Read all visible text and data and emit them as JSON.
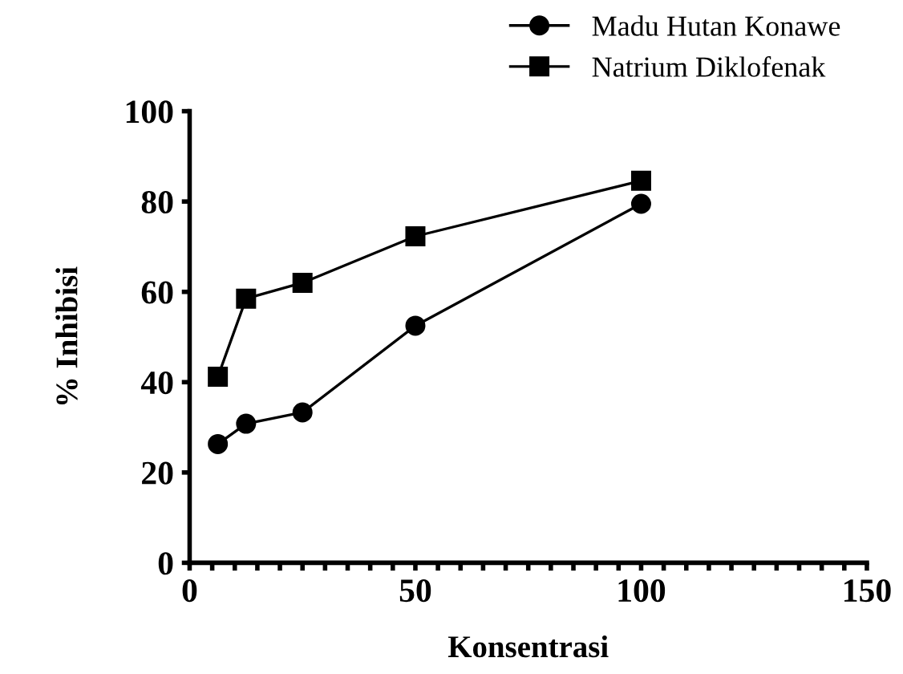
{
  "chart_data": {
    "type": "line",
    "xlabel": "Konsentrasi",
    "ylabel": "% Inhibisi",
    "x": [
      6.25,
      12.5,
      25,
      50,
      100
    ],
    "series": [
      {
        "name": "Madu Hutan Konawe",
        "color": "#000000",
        "marker": "circle",
        "values": [
          26.3,
          30.8,
          33.3,
          52.5,
          79.5
        ]
      },
      {
        "name": "Natrium Diklofenak",
        "color": "#000000",
        "marker": "square",
        "values": [
          41.2,
          58.5,
          62,
          72.3,
          84.6
        ]
      }
    ],
    "xlim": [
      0,
      150
    ],
    "ylim": [
      0,
      100
    ],
    "xticks": [
      0,
      {
        "value": 5,
        "label": null
      },
      {
        "value": 10,
        "label": null
      },
      {
        "value": 15,
        "label": null
      },
      {
        "value": 20,
        "label": null
      },
      {
        "value": 25,
        "label": null
      },
      {
        "value": 30,
        "label": null
      },
      {
        "value": 35,
        "label": null
      },
      {
        "value": 40,
        "label": null
      },
      {
        "value": 45,
        "label": null
      },
      50,
      {
        "value": 55,
        "label": null
      },
      {
        "value": 60,
        "label": null
      },
      {
        "value": 65,
        "label": null
      },
      {
        "value": 70,
        "label": null
      },
      {
        "value": 75,
        "label": null
      },
      {
        "value": 80,
        "label": null
      },
      {
        "value": 85,
        "label": null
      },
      {
        "value": 90,
        "label": null
      },
      {
        "value": 95,
        "label": null
      },
      100,
      {
        "value": 105,
        "label": null
      },
      {
        "value": 110,
        "label": null
      },
      {
        "value": 115,
        "label": null
      },
      {
        "value": 120,
        "label": null
      },
      {
        "value": 125,
        "label": null
      },
      {
        "value": 130,
        "label": null
      },
      {
        "value": 135,
        "label": null
      },
      {
        "value": 140,
        "label": null
      },
      {
        "value": 145,
        "label": null
      },
      150
    ],
    "yticks": [
      0,
      20,
      40,
      60,
      80,
      100
    ],
    "grid": false,
    "legend": "top right",
    "line_style": "solid"
  }
}
